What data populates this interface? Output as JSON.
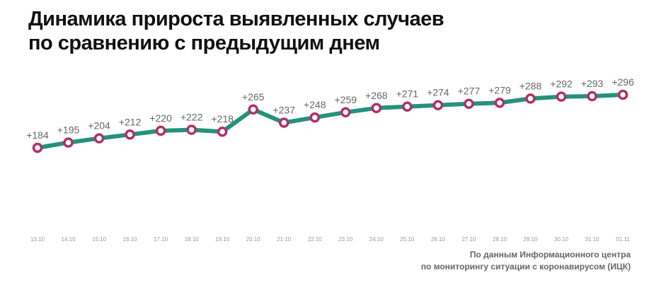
{
  "title_lines": [
    "Динамика прироста выявленных случаев",
    "по сравнению с предыдущим днем"
  ],
  "source_lines": [
    "По данным Информационного центра",
    "по мониторингу ситуации с коронавирусом (ИЦК)"
  ],
  "colors": {
    "line": "#25917e",
    "marker": "#b0306a",
    "marker_fill": "#ffffff"
  },
  "chart_data": {
    "type": "line",
    "categories": [
      "13.10",
      "14.10",
      "15.10",
      "16.10",
      "17.10",
      "18.10",
      "19.10",
      "20.10",
      "21.10",
      "22.10",
      "23.10",
      "24.10",
      "25.10",
      "26.10",
      "27.10",
      "28.10",
      "29.10",
      "30.10",
      "31.10",
      "01.11"
    ],
    "values": [
      184,
      195,
      204,
      212,
      220,
      222,
      218,
      265,
      237,
      248,
      259,
      268,
      271,
      274,
      277,
      279,
      288,
      292,
      293,
      296
    ],
    "data_labels": [
      "+184",
      "+195",
      "+204",
      "+212",
      "+220",
      "+222",
      "+218",
      "+265",
      "+237",
      "+248",
      "+259",
      "+268",
      "+271",
      "+274",
      "+277",
      "+279",
      "+288",
      "+292",
      "+293",
      "+296"
    ],
    "title": "Динамика прироста выявленных случаев по сравнению с предыдущим днем",
    "xlabel": "",
    "ylabel": "",
    "grid": false,
    "legend": "none"
  }
}
